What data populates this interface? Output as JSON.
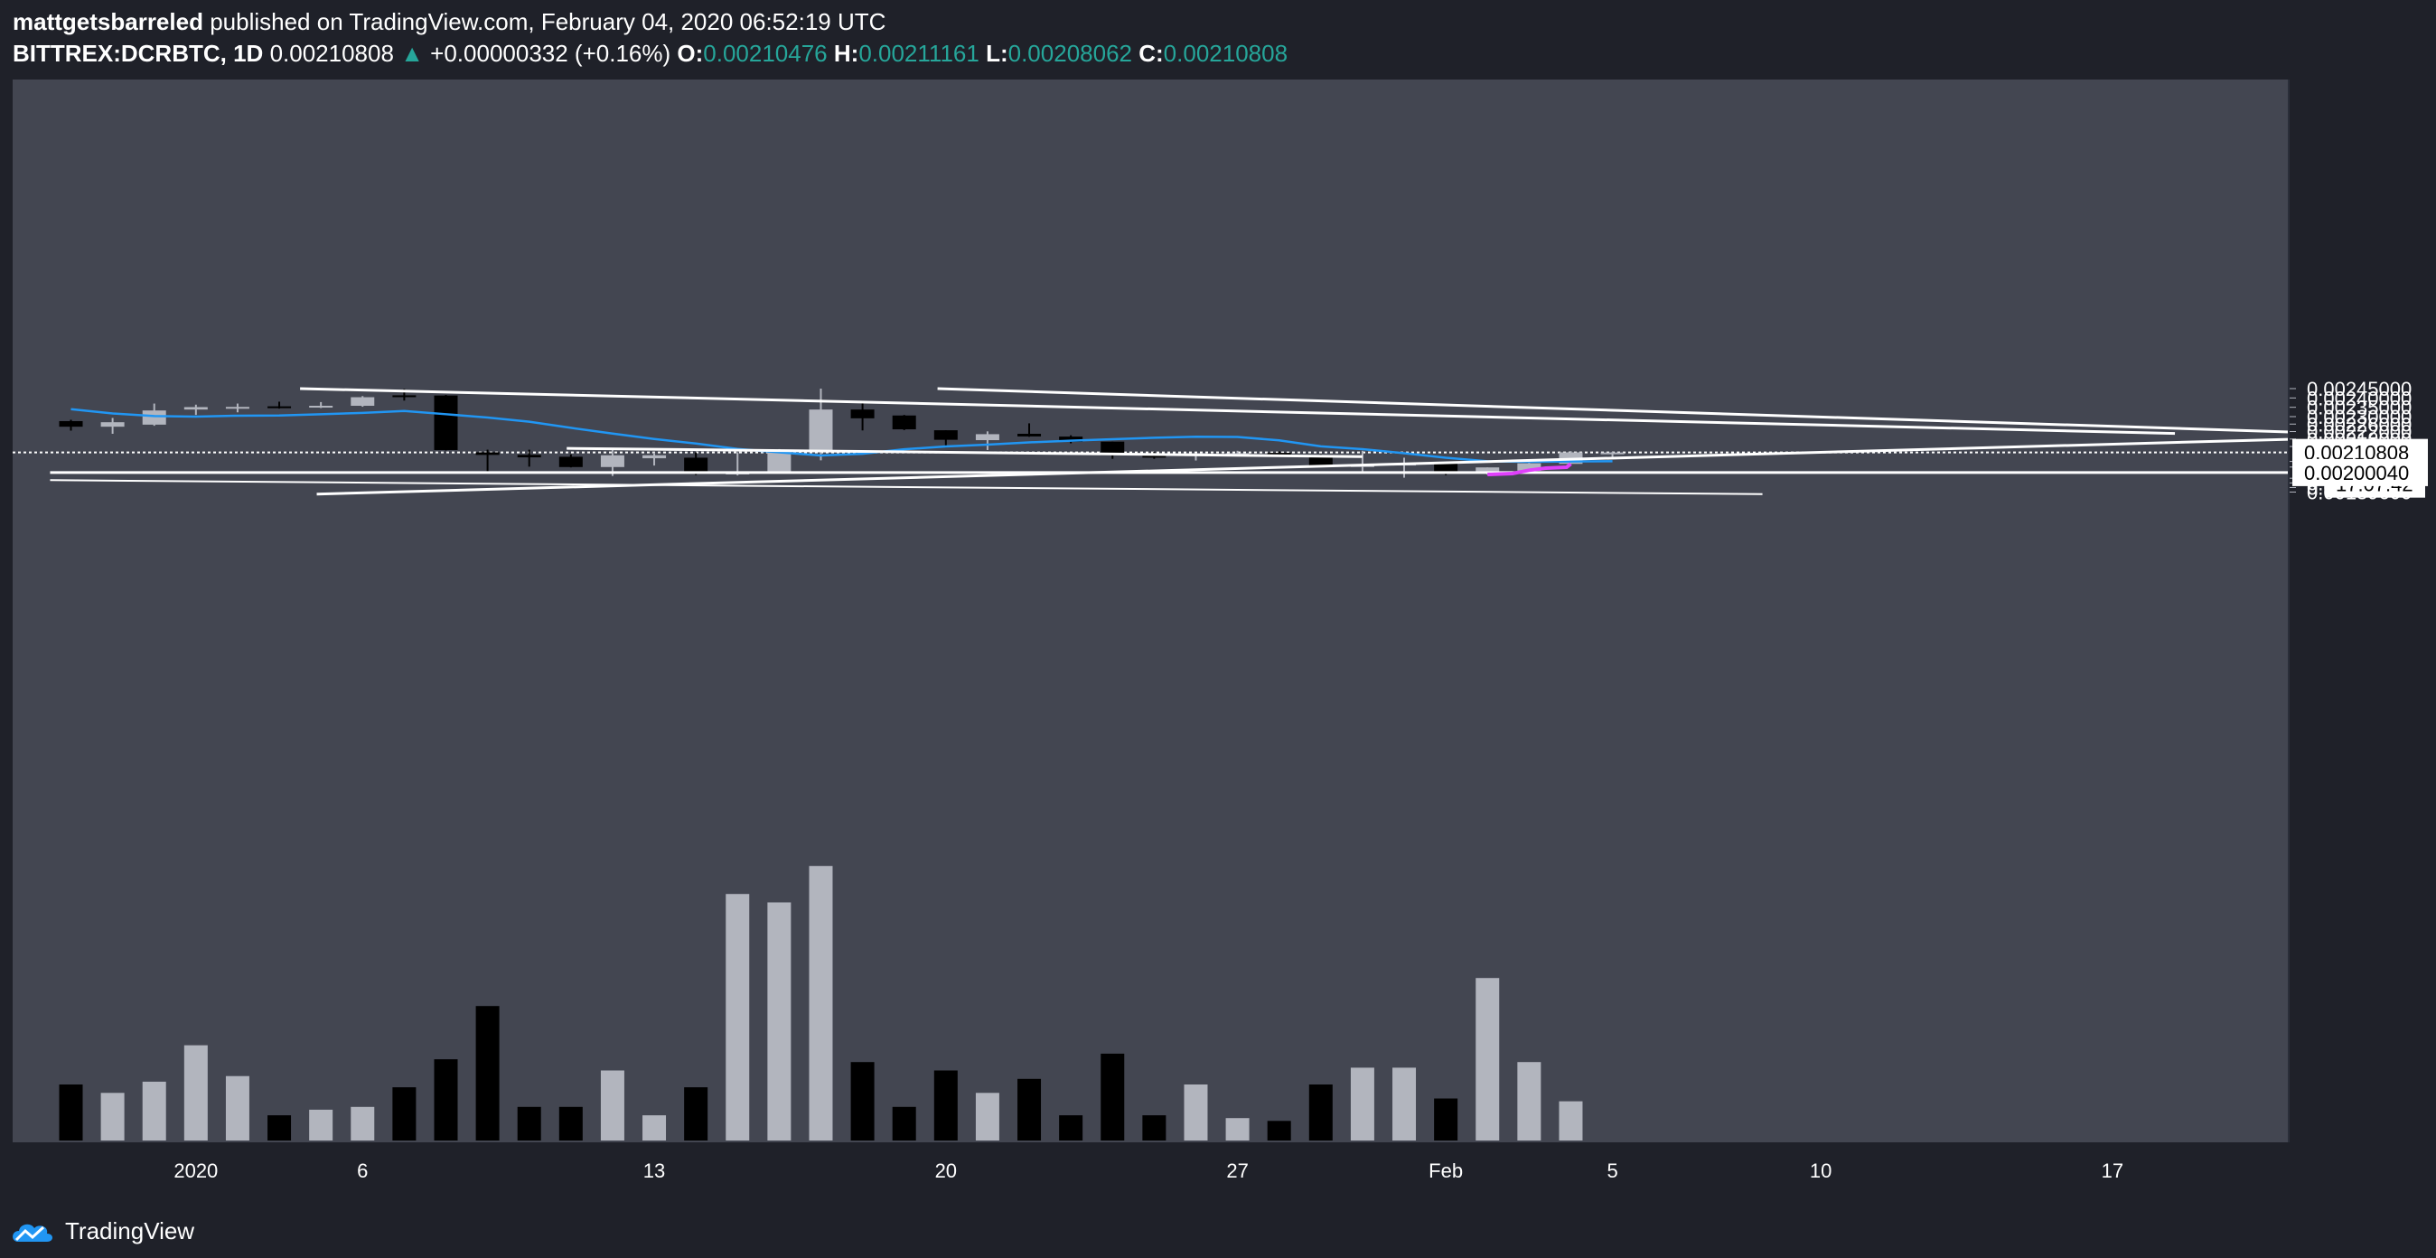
{
  "header": {
    "author": "mattgetsbarreled",
    "published_text": "published on TradingView.com, February 04, 2020 06:52:19 UTC",
    "symbol": "BITTREX:DCRBTC, 1D",
    "last": "0.00210808",
    "change": "+0.00000332 (+0.16%)",
    "o_label": "O:",
    "o": "0.00210476",
    "h_label": "H:",
    "h": "0.00211161",
    "l_label": "L:",
    "l": "0.00208062",
    "c_label": "C:",
    "c": "0.00210808"
  },
  "footer": {
    "brand": "TradingView",
    "logo_icon": "tradingview-cloud-icon"
  },
  "colors": {
    "background": "#1f2129",
    "pane": "#434651",
    "bull": "#b2b5be",
    "bear": "#000000",
    "ma": "#2196f3",
    "trendline": "#ffffff",
    "highlight": "#e040fb",
    "teal": "#26a69a"
  },
  "chart_data": {
    "type": "candlestick",
    "interval": "1D",
    "price_scale": {
      "min": 0.001885,
      "max": 0.002455
    },
    "y_ticks": [
      "0.00245000",
      "0.00240000",
      "0.00235000",
      "0.00230000",
      "0.00226000",
      "0.00222000",
      "0.00218000",
      "0.00214000",
      "0.00206000",
      "0.00203000",
      "0.00197000",
      "0.00194500",
      "0.00192000",
      "0.00189600"
    ],
    "price_tags": [
      {
        "value": 0.00210808,
        "label": "0.00210808",
        "countdown": "17:07:42"
      },
      {
        "value": 0.0020004,
        "label": "0.00200040"
      }
    ],
    "x_ticks": [
      {
        "day": 2,
        "label": "2020"
      },
      {
        "day": 6,
        "label": "6"
      },
      {
        "day": 13,
        "label": "13"
      },
      {
        "day": 20,
        "label": "20"
      },
      {
        "day": 27,
        "label": "27"
      },
      {
        "day": 32,
        "label": "Feb"
      },
      {
        "day": 36,
        "label": "5"
      },
      {
        "day": 41,
        "label": "10"
      },
      {
        "day": 48,
        "label": "17"
      }
    ],
    "candles": [
      {
        "day": -1,
        "o": 0.002276,
        "h": 0.002283,
        "l": 0.002225,
        "c": 0.002246,
        "v": 20
      },
      {
        "day": 0,
        "o": 0.002246,
        "h": 0.002293,
        "l": 0.002208,
        "c": 0.00227,
        "v": 17
      },
      {
        "day": 1,
        "o": 0.002257,
        "h": 0.00237,
        "l": 0.002251,
        "c": 0.002333,
        "v": 21
      },
      {
        "day": 2,
        "o": 0.002338,
        "h": 0.002364,
        "l": 0.002309,
        "c": 0.002351,
        "v": 34
      },
      {
        "day": 3,
        "o": 0.002346,
        "h": 0.00237,
        "l": 0.002323,
        "c": 0.002352,
        "v": 23
      },
      {
        "day": 4,
        "o": 0.002355,
        "h": 0.00238,
        "l": 0.002343,
        "c": 0.002347,
        "v": 9
      },
      {
        "day": 5,
        "o": 0.002352,
        "h": 0.002378,
        "l": 0.002346,
        "c": 0.002358,
        "v": 11
      },
      {
        "day": 6,
        "o": 0.002358,
        "h": 0.00241,
        "l": 0.002353,
        "c": 0.002404,
        "v": 12
      },
      {
        "day": 7,
        "o": 0.002414,
        "h": 0.002448,
        "l": 0.002386,
        "c": 0.002411,
        "v": 19
      },
      {
        "day": 8,
        "o": 0.002413,
        "h": 0.002416,
        "l": 0.002119,
        "c": 0.002121,
        "v": 29
      },
      {
        "day": 9,
        "o": 0.002109,
        "h": 0.002123,
        "l": 0.002,
        "c": 0.002095,
        "v": 48
      },
      {
        "day": 10,
        "o": 0.002095,
        "h": 0.002123,
        "l": 0.002032,
        "c": 0.002082,
        "v": 12
      },
      {
        "day": 11,
        "o": 0.002085,
        "h": 0.002098,
        "l": 0.002028,
        "c": 0.00203,
        "v": 12
      },
      {
        "day": 12,
        "o": 0.00203,
        "h": 0.002125,
        "l": 0.001982,
        "c": 0.002093,
        "v": 25
      },
      {
        "day": 13,
        "o": 0.002077,
        "h": 0.002108,
        "l": 0.002038,
        "c": 0.002093,
        "v": 9
      },
      {
        "day": 14,
        "o": 0.00208,
        "h": 0.002109,
        "l": 0.001987,
        "c": 0.002003,
        "v": 19
      },
      {
        "day": 15,
        "o": 0.001992,
        "h": 0.002109,
        "l": 0.001985,
        "c": 0.002,
        "v": 88
      },
      {
        "day": 16,
        "o": 0.002001,
        "h": 0.002126,
        "l": 0.001996,
        "c": 0.00212,
        "v": 85
      },
      {
        "day": 17,
        "o": 0.002117,
        "h": 0.00245,
        "l": 0.002066,
        "c": 0.002338,
        "v": 98
      },
      {
        "day": 18,
        "o": 0.002338,
        "h": 0.002385,
        "l": 0.002226,
        "c": 0.002291,
        "v": 28
      },
      {
        "day": 19,
        "o": 0.002306,
        "h": 0.002309,
        "l": 0.002228,
        "c": 0.002232,
        "v": 12
      },
      {
        "day": 20,
        "o": 0.002227,
        "h": 0.002227,
        "l": 0.002135,
        "c": 0.002176,
        "v": 25
      },
      {
        "day": 21,
        "o": 0.002174,
        "h": 0.002221,
        "l": 0.002121,
        "c": 0.002206,
        "v": 17
      },
      {
        "day": 22,
        "o": 0.002208,
        "h": 0.002264,
        "l": 0.002192,
        "c": 0.002194,
        "v": 22
      },
      {
        "day": 23,
        "o": 0.002193,
        "h": 0.0022,
        "l": 0.002157,
        "c": 0.002165,
        "v": 9
      },
      {
        "day": 24,
        "o": 0.002166,
        "h": 0.002166,
        "l": 0.002074,
        "c": 0.002093,
        "v": 31
      },
      {
        "day": 25,
        "o": 0.00209,
        "h": 0.002111,
        "l": 0.002074,
        "c": 0.002084,
        "v": 9
      },
      {
        "day": 26,
        "o": 0.002089,
        "h": 0.002104,
        "l": 0.002065,
        "c": 0.002104,
        "v": 20
      },
      {
        "day": 27,
        "o": 0.0021,
        "h": 0.002117,
        "l": 0.002088,
        "c": 0.002104,
        "v": 8
      },
      {
        "day": 28,
        "o": 0.002106,
        "h": 0.002114,
        "l": 0.002087,
        "c": 0.002089,
        "v": 7
      },
      {
        "day": 29,
        "o": 0.002086,
        "h": 0.002098,
        "l": 0.00203,
        "c": 0.002032,
        "v": 20
      },
      {
        "day": 30,
        "o": 0.002033,
        "h": 0.002117,
        "l": 0.002006,
        "c": 0.00204,
        "v": 26
      },
      {
        "day": 31,
        "o": 0.002041,
        "h": 0.00208,
        "l": 0.001973,
        "c": 0.002048,
        "v": 26
      },
      {
        "day": 32,
        "o": 0.002049,
        "h": 0.002055,
        "l": 0.001986,
        "c": 0.002006,
        "v": 15
      },
      {
        "day": 33,
        "o": 0.001999,
        "h": 0.002028,
        "l": 0.001989,
        "c": 0.002028,
        "v": 58
      },
      {
        "day": 34,
        "o": 0.00201,
        "h": 0.002065,
        "l": 0.002001,
        "c": 0.00205,
        "v": 28
      },
      {
        "day": 35,
        "o": 0.002047,
        "h": 0.002115,
        "l": 0.002047,
        "c": 0.002109,
        "v": 14
      },
      {
        "day": 36,
        "o": 0.00210476,
        "h": 0.00211161,
        "l": 0.00208062,
        "c": 0.00210808,
        "v": 0
      }
    ],
    "ma_series": [
      {
        "day": -1,
        "value": 0.00234
      },
      {
        "day": 0,
        "value": 0.002317
      },
      {
        "day": 1,
        "value": 0.002303
      },
      {
        "day": 2,
        "value": 0.0023
      },
      {
        "day": 3,
        "value": 0.002305
      },
      {
        "day": 4,
        "value": 0.002306
      },
      {
        "day": 5,
        "value": 0.002313
      },
      {
        "day": 6,
        "value": 0.00232
      },
      {
        "day": 7,
        "value": 0.00233
      },
      {
        "day": 8,
        "value": 0.002313
      },
      {
        "day": 9,
        "value": 0.002295
      },
      {
        "day": 10,
        "value": 0.002273
      },
      {
        "day": 11,
        "value": 0.00224
      },
      {
        "day": 12,
        "value": 0.002209
      },
      {
        "day": 13,
        "value": 0.00218
      },
      {
        "day": 14,
        "value": 0.002156
      },
      {
        "day": 15,
        "value": 0.002127
      },
      {
        "day": 16,
        "value": 0.002109
      },
      {
        "day": 17,
        "value": 0.002092
      },
      {
        "day": 18,
        "value": 0.002101
      },
      {
        "day": 19,
        "value": 0.002125
      },
      {
        "day": 20,
        "value": 0.00214
      },
      {
        "day": 21,
        "value": 0.00215
      },
      {
        "day": 22,
        "value": 0.002162
      },
      {
        "day": 23,
        "value": 0.002171
      },
      {
        "day": 24,
        "value": 0.002179
      },
      {
        "day": 25,
        "value": 0.002187
      },
      {
        "day": 26,
        "value": 0.002192
      },
      {
        "day": 27,
        "value": 0.002191
      },
      {
        "day": 28,
        "value": 0.002173
      },
      {
        "day": 29,
        "value": 0.002141
      },
      {
        "day": 30,
        "value": 0.002126
      },
      {
        "day": 31,
        "value": 0.002104
      },
      {
        "day": 32,
        "value": 0.00208
      },
      {
        "day": 33,
        "value": 0.002061
      },
      {
        "day": 34,
        "value": 0.002058
      },
      {
        "day": 35,
        "value": 0.00206
      },
      {
        "day": 36,
        "value": 0.002061
      }
    ],
    "trendlines": [
      {
        "x1": 4.5,
        "y1": 0.00245,
        "x2": 49.5,
        "y2": 0.00221
      },
      {
        "x1": 19.8,
        "y1": 0.00245,
        "x2": 53.6,
        "y2": 0.002208
      },
      {
        "x1": 10.9,
        "y1": 0.00213,
        "x2": 30.0,
        "y2": 0.002086
      },
      {
        "x1": 4.9,
        "y1": 0.001885,
        "x2": 53.6,
        "y2": 0.002187
      },
      {
        "x1": -1.5,
        "y1": 0.00196,
        "x2": 39.6,
        "y2": 0.001885
      },
      {
        "x1": -1.5,
        "y1": 0.0020004,
        "x2": 53.6,
        "y2": 0.0020004
      }
    ],
    "highlight_path": [
      {
        "day": 33.0,
        "value": 0.00199
      },
      {
        "day": 33.6,
        "value": 0.001995
      },
      {
        "day": 34.0,
        "value": 0.002013
      },
      {
        "day": 34.4,
        "value": 0.002024
      },
      {
        "day": 34.9,
        "value": 0.002029
      },
      {
        "day": 35.0,
        "value": 0.002047
      }
    ]
  }
}
